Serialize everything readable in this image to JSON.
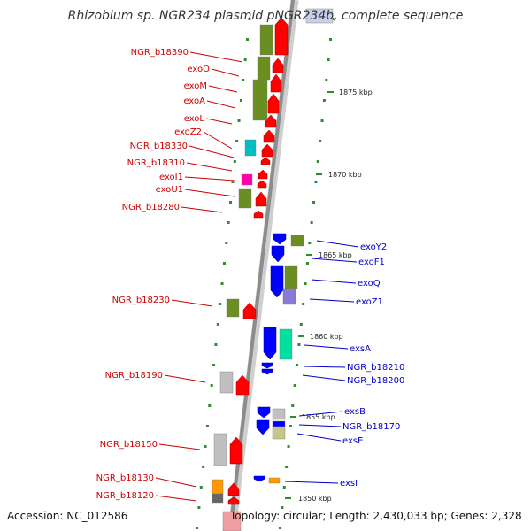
{
  "title": "Rhizobium sp. NGR234 plasmid pNGR234b, complete sequence",
  "footer": {
    "accession": "Accession: NC_012586",
    "info": "Topology: circular; Length: 2,430,033 bp; Genes: 2,328"
  },
  "colors": {
    "backbone": "#8c8c8c",
    "forward_gene": "#ff0000",
    "reverse_gene": "#0000ff",
    "forward_label": "#cc0000",
    "reverse_label": "#0000cc",
    "cog_olive": "#6b8e23",
    "cog_cyan": "#00bfbf",
    "cog_magenta": "#ff00aa",
    "cog_gray": "#c0c0c0",
    "cog_orange": "#ff9900",
    "cog_purple": "#8a7ad8",
    "cog_aqua": "#00e0a0",
    "cog_khaki": "#c8c48a",
    "tick_mark": "#2e8b2e"
  },
  "ticks": [
    "1875 kbp",
    "1870 kbp",
    "1865 kbp",
    "1860 kbp",
    "1855 kbp",
    "1850 kbp"
  ],
  "forward_genes": [
    "NGR_b18390",
    "exoO",
    "exoM",
    "exoA",
    "exoL",
    "exoZ2",
    "NGR_b18330",
    "NGR_b18310",
    "exoI1",
    "exoU1",
    "NGR_b18280",
    "NGR_b18230",
    "NGR_b18190",
    "NGR_b18150",
    "NGR_b18130",
    "NGR_b18120"
  ],
  "reverse_genes": [
    "exoY2",
    "exoF1",
    "exoQ",
    "exoZ1",
    "exsA",
    "NGR_b18210",
    "NGR_b18200",
    "exsB",
    "NGR_b18170",
    "exsE",
    "exsI"
  ]
}
